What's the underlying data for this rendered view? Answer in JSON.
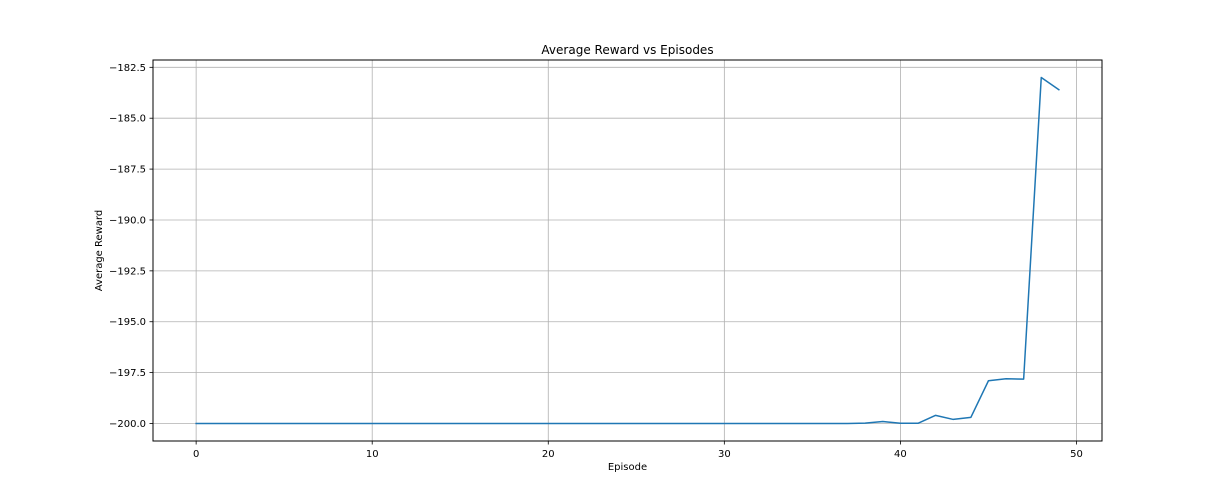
{
  "chart_data": {
    "type": "line",
    "title": "Average Reward vs Episodes",
    "xlabel": "Episode",
    "ylabel": "Average Reward",
    "xlim": [
      -2.45,
      51.45
    ],
    "ylim": [
      -200.86,
      -182.14
    ],
    "xticks": [
      0,
      10,
      20,
      30,
      40,
      50
    ],
    "yticks": [
      -200.0,
      -197.5,
      -195.0,
      -192.5,
      -190.0,
      -187.5,
      -185.0,
      -182.5
    ],
    "xtick_labels": [
      "0",
      "10",
      "20",
      "30",
      "40",
      "50"
    ],
    "ytick_labels": [
      "−200.0",
      "−197.5",
      "−195.0",
      "−192.5",
      "−190.0",
      "−187.5",
      "−185.0",
      "−182.5"
    ],
    "grid": true,
    "series": [
      {
        "color": "#1f77b4",
        "x": [
          0,
          1,
          2,
          3,
          4,
          5,
          6,
          7,
          8,
          9,
          10,
          11,
          12,
          13,
          14,
          15,
          16,
          17,
          18,
          19,
          20,
          21,
          22,
          23,
          24,
          25,
          26,
          27,
          28,
          29,
          30,
          31,
          32,
          33,
          34,
          35,
          36,
          37,
          38,
          39,
          40,
          41,
          42,
          43,
          44,
          45,
          46,
          47,
          48,
          49
        ],
        "values": [
          -200,
          -200,
          -200,
          -200,
          -200,
          -200,
          -200,
          -200,
          -200,
          -200,
          -200,
          -200,
          -200,
          -200,
          -200,
          -200,
          -200,
          -200,
          -200,
          -200,
          -200,
          -200,
          -200,
          -200,
          -200,
          -200,
          -200,
          -200,
          -200,
          -200,
          -200,
          -200,
          -200,
          -200,
          -200,
          -200,
          -200,
          -200,
          -199.98,
          -199.9,
          -199.99,
          -199.99,
          -199.6,
          -199.8,
          -199.7,
          -197.9,
          -197.8,
          -197.82,
          -183,
          -183.6
        ]
      }
    ]
  }
}
